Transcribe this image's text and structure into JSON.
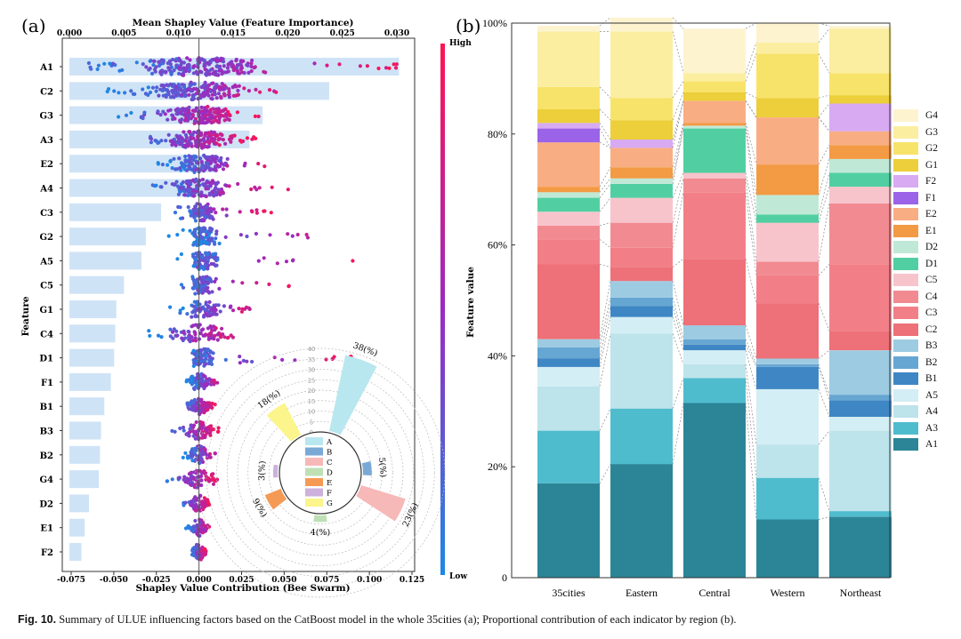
{
  "caption": {
    "fig_label": "Fig. 10.",
    "text": "Summary of ULUE influencing factors based on the CatBoost model in the whole 35cities (a); Proportional contribution of each indicator by region (b)."
  },
  "panel_a": {
    "label": "(a)",
    "top_axis_title": "Mean Shapley Value (Feature Importance)",
    "top_ticks": [
      "0.000",
      "0.005",
      "0.010",
      "0.015",
      "0.020",
      "0.025",
      "0.030"
    ],
    "bottom_axis_title": "Shapley Value Contribution (Bee Swarm)",
    "bottom_ticks": [
      "-0.075",
      "-0.050",
      "-0.025",
      "0.000",
      "0.025",
      "0.050",
      "0.075",
      "0.100",
      "0.125"
    ],
    "y_axis_title": "Feature",
    "colorbar_high": "High",
    "colorbar_low": "Low"
  },
  "panel_b": {
    "label": "(b)",
    "y_axis_title": "Feature value",
    "y_ticks": [
      "0",
      "20%",
      "40%",
      "60%",
      "80%",
      "100%"
    ]
  },
  "chart_data": [
    {
      "type": "bar",
      "title": "Mean Shapley Value (Feature Importance)",
      "orientation": "horizontal",
      "features": [
        "A1",
        "C2",
        "G3",
        "A3",
        "E2",
        "A4",
        "C3",
        "G2",
        "A5",
        "C5",
        "G1",
        "C4",
        "D1",
        "F1",
        "B1",
        "B3",
        "B2",
        "G4",
        "D2",
        "E1",
        "F2"
      ],
      "mean_shap": [
        0.0302,
        0.0238,
        0.0177,
        0.0165,
        0.0136,
        0.0131,
        0.0084,
        0.007,
        0.0066,
        0.005,
        0.0043,
        0.0042,
        0.0041,
        0.0038,
        0.0032,
        0.0029,
        0.0028,
        0.0027,
        0.0018,
        0.0014,
        0.0011
      ],
      "xlim": [
        0,
        0.032
      ]
    },
    {
      "type": "scatter",
      "subtype": "beeswarm",
      "title": "Shapley Value Contribution (Bee Swarm)",
      "features": [
        "A1",
        "C2",
        "G3",
        "A3",
        "E2",
        "A4",
        "C3",
        "G2",
        "A5",
        "C5",
        "G1",
        "C4",
        "D1",
        "F1",
        "B1",
        "B3",
        "B2",
        "G4",
        "D2",
        "E1",
        "F2"
      ],
      "shap_min": [
        -0.07,
        -0.054,
        -0.05,
        -0.038,
        -0.028,
        -0.028,
        -0.016,
        -0.018,
        -0.014,
        -0.012,
        -0.018,
        -0.032,
        -0.012,
        -0.008,
        -0.008,
        -0.016,
        -0.01,
        -0.02,
        -0.01,
        -0.008,
        -0.004
      ],
      "shap_max": [
        0.118,
        0.046,
        0.036,
        0.034,
        0.04,
        0.054,
        0.046,
        0.07,
        0.092,
        0.054,
        0.03,
        0.03,
        0.095,
        0.012,
        0.01,
        0.012,
        0.01,
        0.016,
        0.006,
        0.006,
        0.004
      ],
      "xlim": [
        -0.08,
        0.13
      ],
      "color_scale": [
        "Low",
        "High"
      ]
    },
    {
      "type": "pie",
      "subtype": "polar-bar",
      "categories": [
        "A",
        "B",
        "C",
        "D",
        "E",
        "F",
        "G"
      ],
      "values": [
        38,
        5,
        23,
        4,
        9,
        3,
        18
      ],
      "labels": [
        "38(%)",
        "5(%)",
        "23(%)",
        "4(%)",
        "9(%)",
        "3(%)",
        "18(%)"
      ],
      "radial_ticks": [
        "0",
        "5",
        "10",
        "15",
        "20",
        "25",
        "30",
        "35",
        "40"
      ]
    },
    {
      "type": "bar",
      "subtype": "stacked-100",
      "categories": [
        "35cities",
        "Eastern",
        "Central",
        "Western",
        "Northeast"
      ],
      "series": [
        {
          "name": "A1",
          "values": [
            17,
            20.5,
            31.5,
            10.5,
            11
          ]
        },
        {
          "name": "A3",
          "values": [
            9.5,
            10,
            4.5,
            7.5,
            1
          ]
        },
        {
          "name": "A4",
          "values": [
            8,
            13.5,
            2.5,
            6,
            14.5
          ]
        },
        {
          "name": "A5",
          "values": [
            3.5,
            3,
            2.5,
            10,
            2.5
          ]
        },
        {
          "name": "B1",
          "values": [
            1.5,
            2,
            1,
            4,
            3
          ]
        },
        {
          "name": "B2",
          "values": [
            2,
            1.5,
            1,
            0.5,
            1
          ]
        },
        {
          "name": "B3",
          "values": [
            1.5,
            3,
            2.5,
            1,
            8
          ]
        },
        {
          "name": "C2",
          "values": [
            13.5,
            2.5,
            12,
            10,
            3.5
          ]
        },
        {
          "name": "C3",
          "values": [
            4.5,
            3.5,
            12,
            5,
            12
          ]
        },
        {
          "name": "C4",
          "values": [
            2.5,
            4.5,
            2.5,
            2.5,
            11
          ]
        },
        {
          "name": "C5",
          "values": [
            2.5,
            4.5,
            1,
            7,
            3
          ]
        },
        {
          "name": "D1",
          "values": [
            2.5,
            2.5,
            8,
            1.5,
            2.5
          ]
        },
        {
          "name": "D2",
          "values": [
            1,
            1,
            0.5,
            3.5,
            2.5
          ]
        },
        {
          "name": "E1",
          "values": [
            1,
            2,
            0.5,
            5.5,
            2.5
          ]
        },
        {
          "name": "E2",
          "values": [
            8,
            3.5,
            4,
            8.5,
            2.5
          ]
        },
        {
          "name": "F1",
          "values": [
            2.5,
            0,
            0,
            0,
            0
          ]
        },
        {
          "name": "F2",
          "values": [
            1,
            1.5,
            0,
            0,
            5
          ]
        },
        {
          "name": "G1",
          "values": [
            2.5,
            3.5,
            1.5,
            3.5,
            1.5
          ]
        },
        {
          "name": "G2",
          "values": [
            4,
            4,
            2,
            8,
            4
          ]
        },
        {
          "name": "G3",
          "values": [
            10,
            12,
            1.5,
            2,
            8
          ]
        },
        {
          "name": "G4",
          "values": [
            1,
            2.5,
            8,
            3.5,
            0.5
          ]
        }
      ],
      "ylabel": "Feature value",
      "ylim": [
        0,
        100
      ]
    }
  ],
  "legend_b": [
    {
      "name": "G4",
      "color": "#fdf3cf"
    },
    {
      "name": "G3",
      "color": "#fbeea0"
    },
    {
      "name": "G2",
      "color": "#f8e36a"
    },
    {
      "name": "G1",
      "color": "#eccf3a"
    },
    {
      "name": "F2",
      "color": "#d7aaf2"
    },
    {
      "name": "F1",
      "color": "#9a63e8"
    },
    {
      "name": "E2",
      "color": "#f9ad83"
    },
    {
      "name": "E1",
      "color": "#f39a44"
    },
    {
      "name": "D2",
      "color": "#bfe9d6"
    },
    {
      "name": "D1",
      "color": "#52cfa2"
    },
    {
      "name": "C5",
      "color": "#f8c4cc"
    },
    {
      "name": "C4",
      "color": "#f28a92"
    },
    {
      "name": "C3",
      "color": "#f27f88"
    },
    {
      "name": "C2",
      "color": "#ee7078"
    },
    {
      "name": "B3",
      "color": "#9dcbe2"
    },
    {
      "name": "B2",
      "color": "#66a6d2"
    },
    {
      "name": "B1",
      "color": "#3f87c4"
    },
    {
      "name": "A5",
      "color": "#d3eef4"
    },
    {
      "name": "A4",
      "color": "#bde3eb"
    },
    {
      "name": "A3",
      "color": "#4fbccd"
    },
    {
      "name": "A1",
      "color": "#2b8596"
    }
  ]
}
